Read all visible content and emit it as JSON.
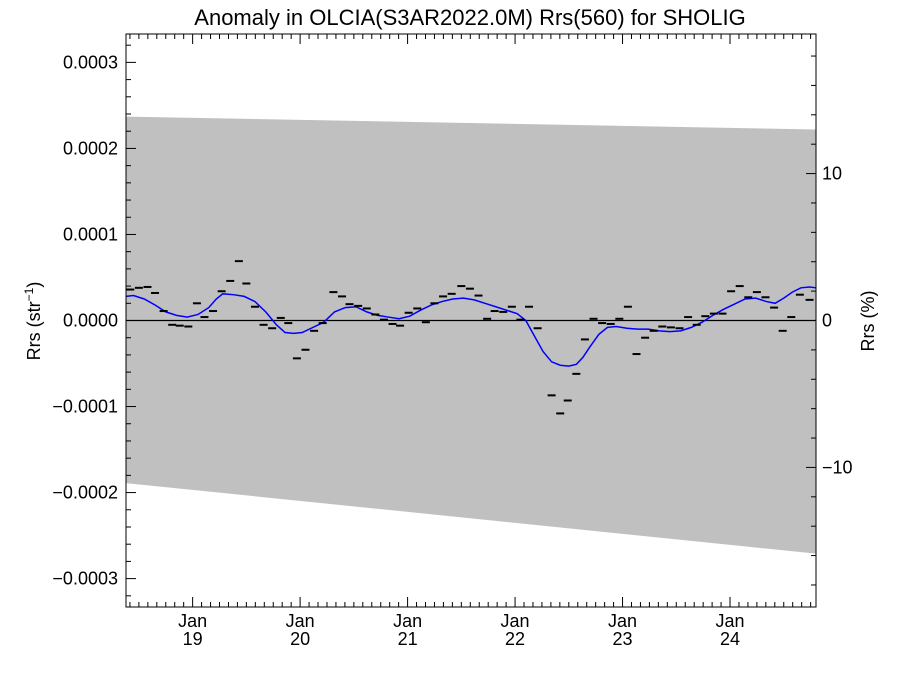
{
  "chart_data": {
    "type": "line",
    "title": "Anomaly in OLCIA(S3AR2022.0M) Rrs(560) for SHOLIG",
    "ylabel": "Rrs (str⁻¹)",
    "ylabel_parts": [
      "Rrs (str",
      "−1",
      ")"
    ],
    "y2label": "Rrs (%)",
    "xlim": [
      2018.38,
      2024.8
    ],
    "ylim": [
      -0.000333,
      0.000333
    ],
    "y2lim": [
      -19.5,
      19.5
    ],
    "y_ticks": [
      {
        "value": 0.0003,
        "label": "0.0003"
      },
      {
        "value": 0.0002,
        "label": "0.0002"
      },
      {
        "value": 0.0001,
        "label": "0.0001"
      },
      {
        "value": 0.0,
        "label": "0.0000"
      },
      {
        "value": -0.0001,
        "label": "−0.0001"
      },
      {
        "value": -0.0002,
        "label": "−0.0002"
      },
      {
        "value": -0.0003,
        "label": "−0.0003"
      }
    ],
    "y2_ticks": [
      {
        "value": 10,
        "label": "10"
      },
      {
        "value": 0,
        "label": "0"
      },
      {
        "value": -10,
        "label": "−10"
      }
    ],
    "x_ticks": [
      {
        "value": 2019.0,
        "month": "Jan",
        "year": "19"
      },
      {
        "value": 2020.0,
        "month": "Jan",
        "year": "20"
      },
      {
        "value": 2021.0,
        "month": "Jan",
        "year": "21"
      },
      {
        "value": 2022.0,
        "month": "Jan",
        "year": "22"
      },
      {
        "value": 2023.0,
        "month": "Jan",
        "year": "23"
      },
      {
        "value": 2024.0,
        "month": "Jan",
        "year": "24"
      }
    ],
    "grid": false,
    "colors": {
      "band": "#c0c0c0",
      "smooth_line": "#0000ff",
      "points": "#000000",
      "zero_line": "#000000"
    },
    "band": {
      "upper": [
        [
          2018.38,
          0.000237
        ],
        [
          2024.8,
          0.000222
        ]
      ],
      "lower": [
        [
          2018.38,
          -0.000189
        ],
        [
          2024.8,
          -0.000271
        ]
      ]
    },
    "series": [
      {
        "style": "dash-markers",
        "points": [
          [
            2018.42,
            3.6e-05
          ],
          [
            2018.5,
            3.8e-05
          ],
          [
            2018.58,
            3.9e-05
          ],
          [
            2018.65,
            3.2e-05
          ],
          [
            2018.73,
            1.1e-05
          ],
          [
            2018.81,
            -5e-06
          ],
          [
            2018.88,
            -6e-06
          ],
          [
            2018.96,
            -7e-06
          ],
          [
            2019.04,
            2e-05
          ],
          [
            2019.11,
            4e-06
          ],
          [
            2019.19,
            1.1e-05
          ],
          [
            2019.27,
            3.4e-05
          ],
          [
            2019.35,
            4.6e-05
          ],
          [
            2019.43,
            6.9e-05
          ],
          [
            2019.5,
            4.3e-05
          ],
          [
            2019.58,
            1.6e-05
          ],
          [
            2019.66,
            -5e-06
          ],
          [
            2019.74,
            -9e-06
          ],
          [
            2019.82,
            3e-06
          ],
          [
            2019.89,
            -3e-06
          ],
          [
            2019.97,
            -4.4e-05
          ],
          [
            2020.05,
            -3.4e-05
          ],
          [
            2020.13,
            -1.2e-05
          ],
          [
            2020.21,
            -3e-06
          ],
          [
            2020.31,
            3.3e-05
          ],
          [
            2020.39,
            2.8e-05
          ],
          [
            2020.46,
            1.9e-05
          ],
          [
            2020.54,
            1.7e-05
          ],
          [
            2020.62,
            1.4e-05
          ],
          [
            2020.7,
            7e-06
          ],
          [
            2020.78,
            1e-06
          ],
          [
            2020.86,
            -4e-06
          ],
          [
            2020.93,
            -6e-06
          ],
          [
            2021.01,
            9e-06
          ],
          [
            2021.09,
            1.4e-05
          ],
          [
            2021.17,
            -2e-06
          ],
          [
            2021.25,
            2e-05
          ],
          [
            2021.33,
            2.8e-05
          ],
          [
            2021.41,
            3.1e-05
          ],
          [
            2021.5,
            4e-05
          ],
          [
            2021.58,
            3.7e-05
          ],
          [
            2021.66,
            2.9e-05
          ],
          [
            2021.74,
            2e-06
          ],
          [
            2021.81,
            1.1e-05
          ],
          [
            2021.89,
            1e-05
          ],
          [
            2021.97,
            1.6e-05
          ],
          [
            2022.05,
            1e-06
          ],
          [
            2022.13,
            1.6e-05
          ],
          [
            2022.21,
            -9e-06
          ],
          [
            2022.34,
            -8.7e-05
          ],
          [
            2022.42,
            -0.000108
          ],
          [
            2022.49,
            -9.3e-05
          ],
          [
            2022.57,
            -6.2e-05
          ],
          [
            2022.65,
            -2.2e-05
          ],
          [
            2022.73,
            2e-06
          ],
          [
            2022.81,
            -3e-06
          ],
          [
            2022.89,
            -4e-06
          ],
          [
            2022.97,
            2e-06
          ],
          [
            2023.05,
            1.6e-05
          ],
          [
            2023.13,
            -3.9e-05
          ],
          [
            2023.21,
            -2e-05
          ],
          [
            2023.29,
            -1.2e-05
          ],
          [
            2023.37,
            -7e-06
          ],
          [
            2023.45,
            -8e-06
          ],
          [
            2023.53,
            -9e-06
          ],
          [
            2023.61,
            4e-06
          ],
          [
            2023.69,
            -5e-06
          ],
          [
            2023.77,
            5e-06
          ],
          [
            2023.85,
            8e-06
          ],
          [
            2023.93,
            8e-06
          ],
          [
            2024.01,
            3.4e-05
          ],
          [
            2024.09,
            4e-05
          ],
          [
            2024.17,
            2.7e-05
          ],
          [
            2024.25,
            3.3e-05
          ],
          [
            2024.33,
            2.7e-05
          ],
          [
            2024.41,
            1.5e-05
          ],
          [
            2024.49,
            -1.2e-05
          ],
          [
            2024.57,
            4e-06
          ],
          [
            2024.65,
            3e-05
          ],
          [
            2024.74,
            2.4e-05
          ]
        ]
      },
      {
        "style": "smoothed-line",
        "points": [
          [
            2018.38,
            2.8e-05
          ],
          [
            2018.45,
            2.9e-05
          ],
          [
            2018.55,
            2.5e-05
          ],
          [
            2018.65,
            1.8e-05
          ],
          [
            2018.75,
            1e-05
          ],
          [
            2018.85,
            6e-06
          ],
          [
            2018.95,
            4e-06
          ],
          [
            2019.05,
            7e-06
          ],
          [
            2019.15,
            1.5e-05
          ],
          [
            2019.22,
            2.5e-05
          ],
          [
            2019.28,
            3.1e-05
          ],
          [
            2019.38,
            3e-05
          ],
          [
            2019.48,
            2.8e-05
          ],
          [
            2019.58,
            2.2e-05
          ],
          [
            2019.68,
            1e-05
          ],
          [
            2019.78,
            -5e-06
          ],
          [
            2019.86,
            -1.4e-05
          ],
          [
            2019.94,
            -1.5e-05
          ],
          [
            2020.02,
            -1.4e-05
          ],
          [
            2020.12,
            -8e-06
          ],
          [
            2020.22,
            -2e-06
          ],
          [
            2020.32,
            1e-05
          ],
          [
            2020.42,
            1.5e-05
          ],
          [
            2020.52,
            1.6e-05
          ],
          [
            2020.62,
            1e-05
          ],
          [
            2020.72,
            6e-06
          ],
          [
            2020.82,
            4e-06
          ],
          [
            2020.92,
            2e-06
          ],
          [
            2021.02,
            5e-06
          ],
          [
            2021.12,
            1.2e-05
          ],
          [
            2021.22,
            1.8e-05
          ],
          [
            2021.32,
            2.2e-05
          ],
          [
            2021.42,
            2.5e-05
          ],
          [
            2021.52,
            2.6e-05
          ],
          [
            2021.62,
            2.4e-05
          ],
          [
            2021.72,
            2e-05
          ],
          [
            2021.82,
            1.6e-05
          ],
          [
            2021.92,
            1.2e-05
          ],
          [
            2022.02,
            8e-06
          ],
          [
            2022.1,
            0.0
          ],
          [
            2022.18,
            -1.8e-05
          ],
          [
            2022.26,
            -3.6e-05
          ],
          [
            2022.34,
            -4.8e-05
          ],
          [
            2022.42,
            -5.2e-05
          ],
          [
            2022.5,
            -5.3e-05
          ],
          [
            2022.57,
            -5.1e-05
          ],
          [
            2022.63,
            -4.3e-05
          ],
          [
            2022.7,
            -3e-05
          ],
          [
            2022.78,
            -1.6e-05
          ],
          [
            2022.86,
            -8e-06
          ],
          [
            2022.94,
            -7e-06
          ],
          [
            2023.04,
            -9e-06
          ],
          [
            2023.14,
            -1e-05
          ],
          [
            2023.24,
            -1e-05
          ],
          [
            2023.34,
            -1.2e-05
          ],
          [
            2023.44,
            -1.3e-05
          ],
          [
            2023.54,
            -1.2e-05
          ],
          [
            2023.64,
            -8e-06
          ],
          [
            2023.74,
            -2e-06
          ],
          [
            2023.84,
            6e-06
          ],
          [
            2023.94,
            1.3e-05
          ],
          [
            2024.04,
            1.9e-05
          ],
          [
            2024.14,
            2.5e-05
          ],
          [
            2024.24,
            2.6e-05
          ],
          [
            2024.34,
            2.2e-05
          ],
          [
            2024.42,
            2e-05
          ],
          [
            2024.5,
            2.6e-05
          ],
          [
            2024.58,
            3.3e-05
          ],
          [
            2024.66,
            3.8e-05
          ],
          [
            2024.74,
            3.9e-05
          ],
          [
            2024.8,
            3.8e-05
          ]
        ]
      }
    ]
  }
}
